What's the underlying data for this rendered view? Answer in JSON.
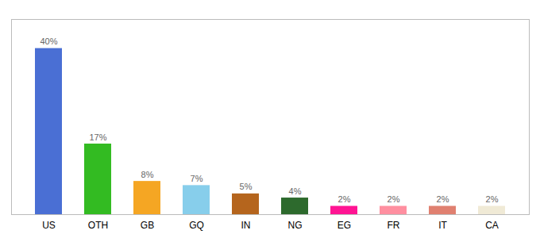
{
  "chart_data": {
    "type": "bar",
    "categories": [
      "US",
      "OTH",
      "GB",
      "GQ",
      "IN",
      "NG",
      "EG",
      "FR",
      "IT",
      "CA"
    ],
    "values": [
      40,
      17,
      8,
      7,
      5,
      4,
      2,
      2,
      2,
      2
    ],
    "value_labels": [
      "40%",
      "17%",
      "8%",
      "7%",
      "5%",
      "4%",
      "2%",
      "2%",
      "2%",
      "2%"
    ],
    "colors": [
      "#4a6fd4",
      "#33bb22",
      "#f5a623",
      "#87ceeb",
      "#b5651d",
      "#2d6a2d",
      "#ff1493",
      "#ff8fa0",
      "#e08070",
      "#f0ead6"
    ],
    "ylim": [
      0,
      47
    ],
    "grid": false,
    "data_labels": true,
    "tick_labels": "x"
  }
}
